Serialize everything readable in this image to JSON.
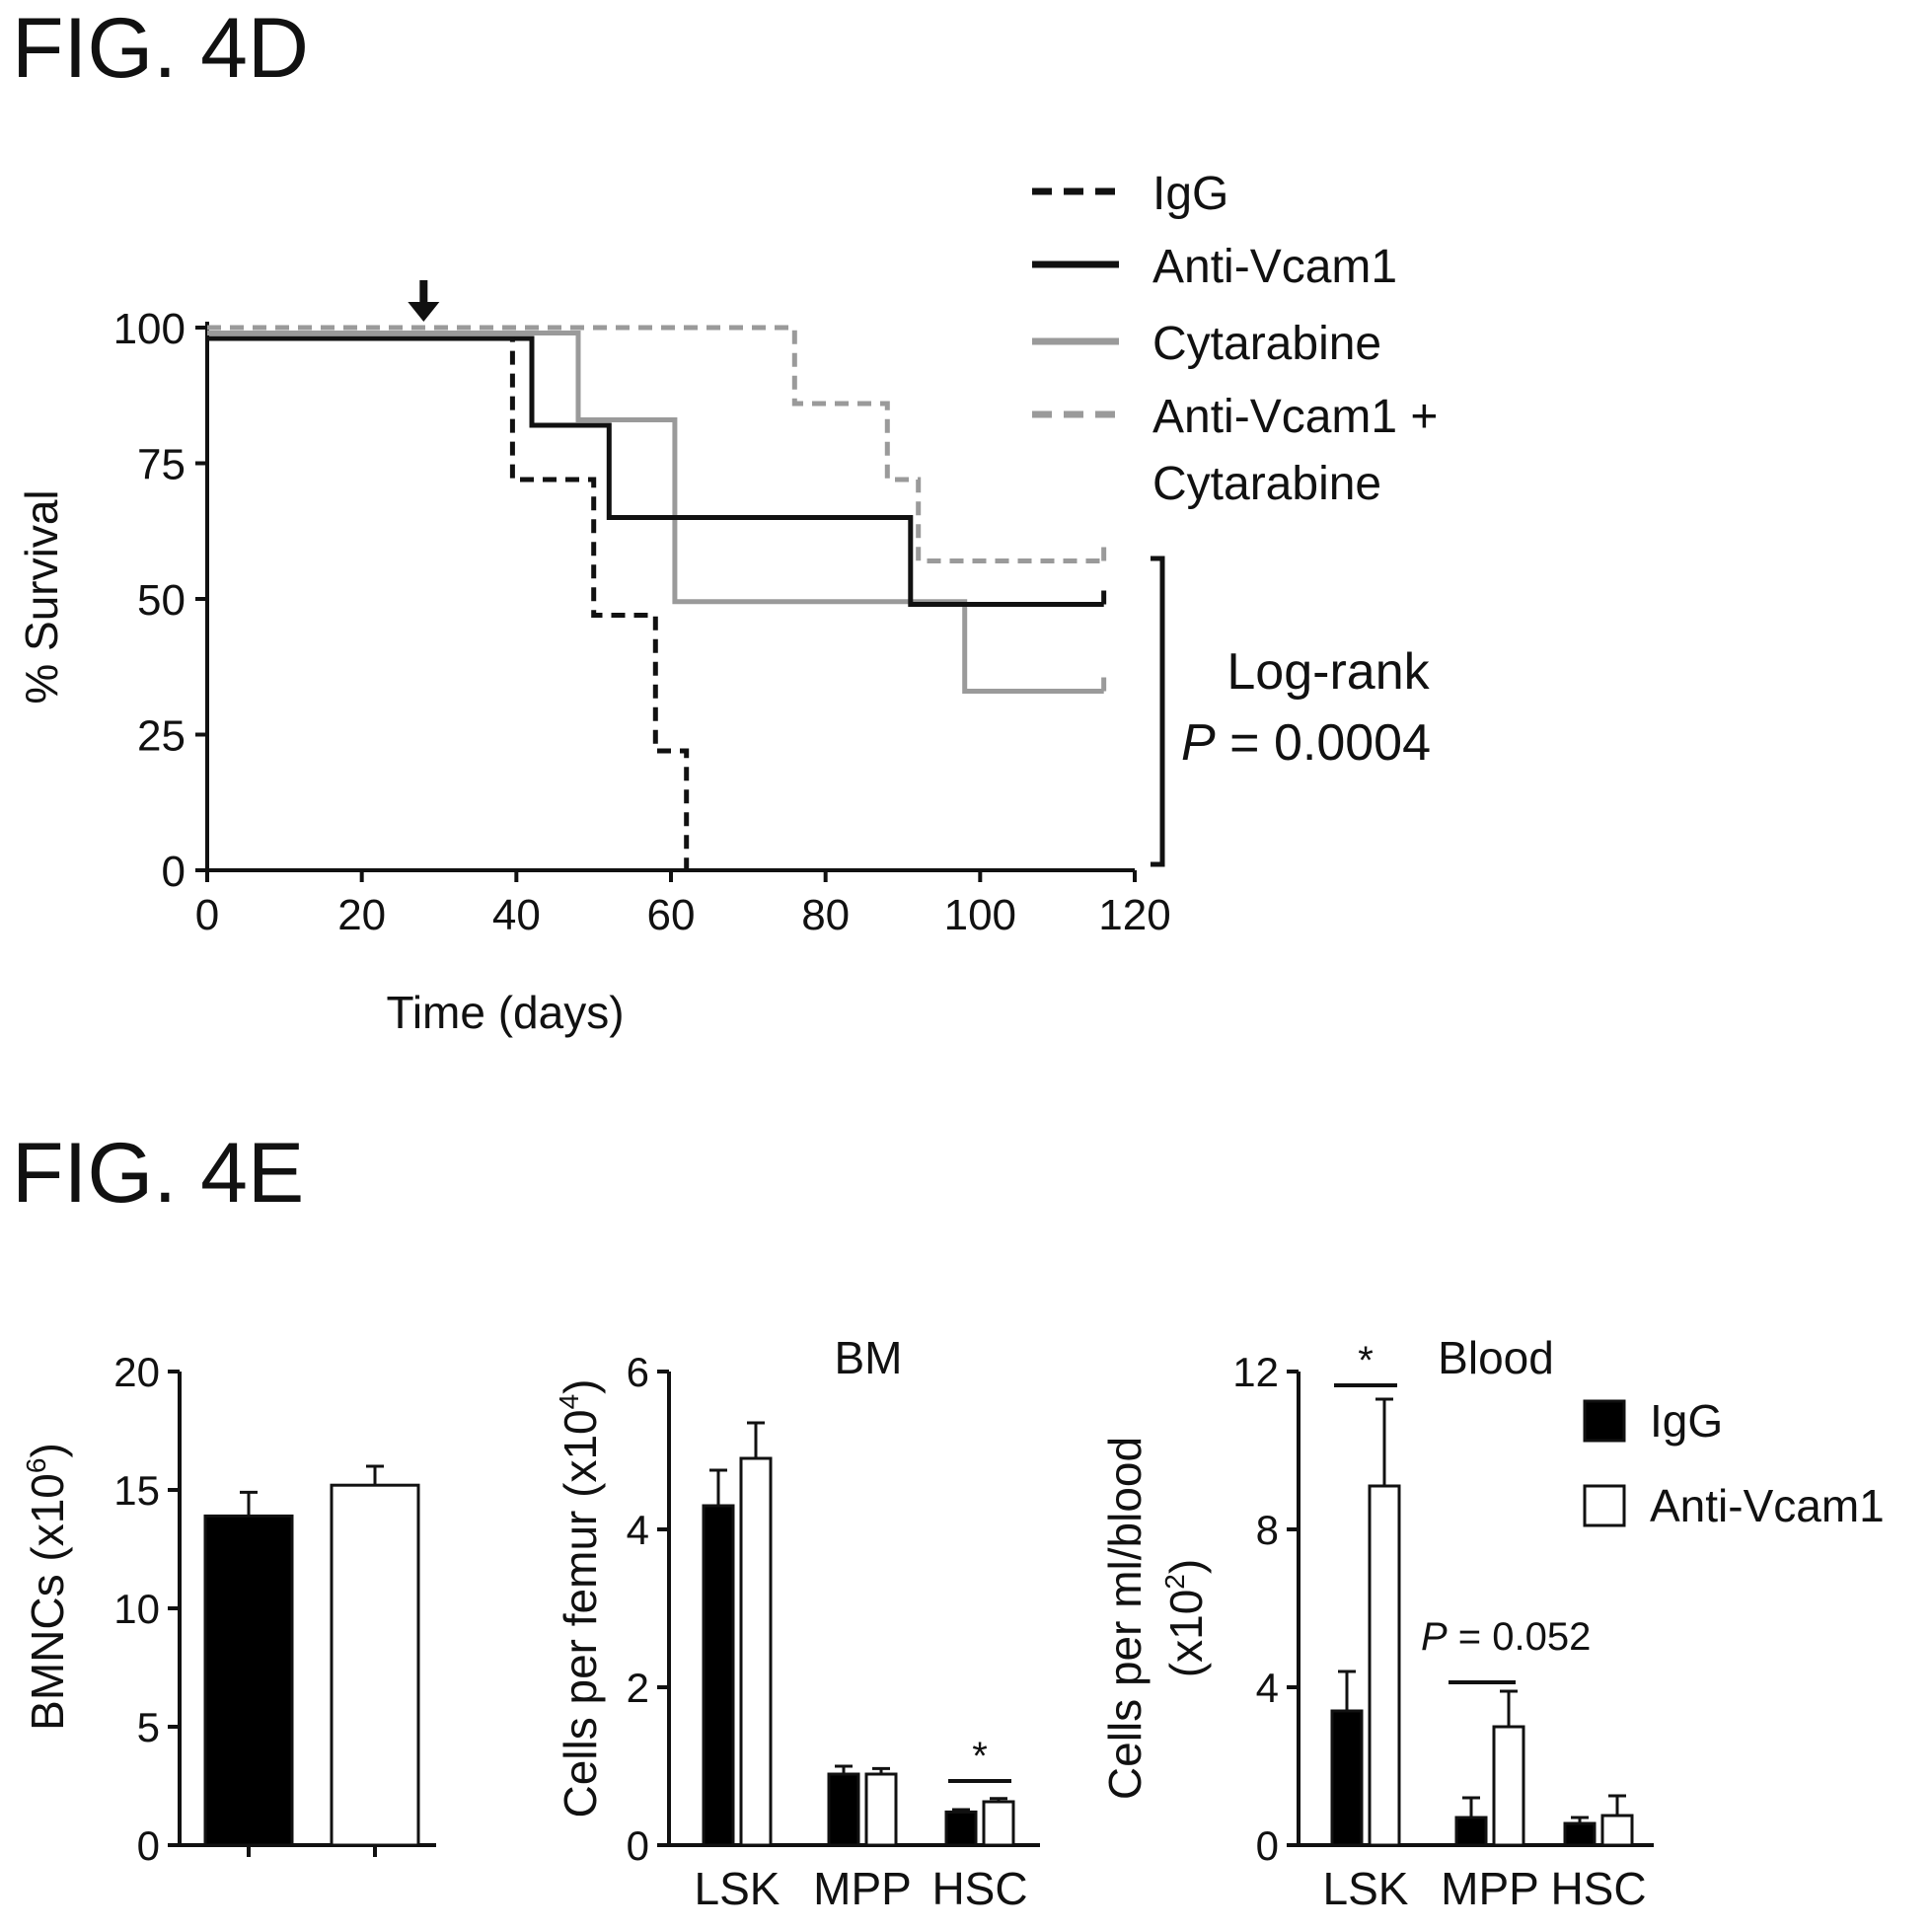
{
  "figures": {
    "fig4d_label": "FIG. 4D",
    "fig4e_label": "FIG. 4E"
  },
  "chart_data": [
    {
      "type": "line",
      "subtype": "kaplan-meier-survival",
      "xlabel": "Time (days)",
      "ylabel": "% Survival",
      "xlim": [
        0,
        120
      ],
      "ylim": [
        0,
        100
      ],
      "xticks": [
        "0",
        "20",
        "40",
        "60",
        "80",
        "100",
        "120"
      ],
      "yticks": [
        "0",
        "25",
        "50",
        "75",
        "100"
      ],
      "arrow_marker_at_day": 28,
      "legend_placement": "top-right",
      "series": [
        {
          "name": "IgG",
          "color": "#111111",
          "dash": "dashed",
          "points": [
            [
              0,
              98
            ],
            [
              39.5,
              98
            ],
            [
              39.5,
              72
            ],
            [
              50,
              72
            ],
            [
              50,
              47
            ],
            [
              58,
              47
            ],
            [
              58,
              22
            ],
            [
              62,
              22
            ],
            [
              62,
              0
            ]
          ]
        },
        {
          "name": "Anti-Vcam1",
          "color": "#111111",
          "dash": "solid",
          "points": [
            [
              0,
              98
            ],
            [
              42,
              98
            ],
            [
              42,
              82
            ],
            [
              52,
              82
            ],
            [
              52,
              65
            ],
            [
              91,
              65
            ],
            [
              91,
              49
            ],
            [
              116,
              49
            ]
          ]
        },
        {
          "name": "Cytarabine",
          "color": "#9a9a9a",
          "dash": "solid",
          "points": [
            [
              0,
              99
            ],
            [
              48,
              99
            ],
            [
              48,
              83
            ],
            [
              60.5,
              83
            ],
            [
              60.5,
              49.5
            ],
            [
              98,
              49.5
            ],
            [
              98,
              33
            ],
            [
              116,
              33
            ]
          ]
        },
        {
          "name_lines": [
            "Anti-Vcam1 +",
            "Cytarabine"
          ],
          "color": "#9a9a9a",
          "dash": "dashed",
          "points": [
            [
              0,
              100
            ],
            [
              76,
              100
            ],
            [
              76,
              86
            ],
            [
              88,
              86
            ],
            [
              88,
              72
            ],
            [
              92,
              72
            ],
            [
              92,
              57
            ],
            [
              116,
              57
            ]
          ]
        }
      ],
      "annotation": {
        "line1": "Log-rank",
        "p_italic": "P",
        "p_rest": " = 0.0004"
      }
    },
    {
      "type": "bar",
      "ylabel": "BMNCs (x10",
      "ylabel_sup": "6",
      "ylabel_end": ")",
      "ylim": [
        0,
        20
      ],
      "yticks": [
        "0",
        "5",
        "10",
        "15",
        "20"
      ],
      "categories": [
        ""
      ],
      "series": [
        {
          "name": "IgG",
          "fill": "#000000",
          "values": [
            13.9
          ],
          "errors": [
            1.0
          ]
        },
        {
          "name": "Anti-Vcam1",
          "fill": "#ffffff",
          "values": [
            15.2
          ],
          "errors": [
            0.8
          ]
        }
      ]
    },
    {
      "type": "bar",
      "title": "BM",
      "ylabel": "Cells per femur (x10",
      "ylabel_sup": "4",
      "ylabel_end": ")",
      "ylim": [
        0,
        6
      ],
      "yticks": [
        "0",
        "2",
        "4",
        "6"
      ],
      "categories": [
        "LSK",
        "MPP",
        "HSC"
      ],
      "series": [
        {
          "name": "IgG",
          "fill": "#000000",
          "values": [
            4.3,
            0.9,
            0.42
          ],
          "errors": [
            0.45,
            0.1,
            0.03
          ]
        },
        {
          "name": "Anti-Vcam1",
          "fill": "#ffffff",
          "values": [
            4.9,
            0.9,
            0.55
          ],
          "errors": [
            0.45,
            0.07,
            0.04
          ]
        }
      ],
      "significance": [
        {
          "category_index": 2,
          "label": "*"
        }
      ]
    },
    {
      "type": "bar",
      "title": "Blood",
      "ylabel_line1": "Cells per ml/blood",
      "ylabel_line2": "(x10",
      "ylabel_sup": "2",
      "ylabel_end": ")",
      "ylim": [
        0,
        12
      ],
      "yticks": [
        "0",
        "4",
        "8",
        "12"
      ],
      "categories": [
        "LSK",
        "MPP",
        "HSC"
      ],
      "series": [
        {
          "name": "IgG",
          "fill": "#000000",
          "values": [
            3.4,
            0.7,
            0.55
          ],
          "errors": [
            1.0,
            0.5,
            0.15
          ]
        },
        {
          "name": "Anti-Vcam1",
          "fill": "#ffffff",
          "values": [
            9.1,
            3.0,
            0.75
          ],
          "errors": [
            2.2,
            0.9,
            0.5
          ]
        }
      ],
      "significance": [
        {
          "category_index": 0,
          "label": "*"
        }
      ],
      "annotation": {
        "p_italic": "P",
        "p_rest": " = 0.052"
      },
      "legend_placement": "top-right"
    }
  ]
}
